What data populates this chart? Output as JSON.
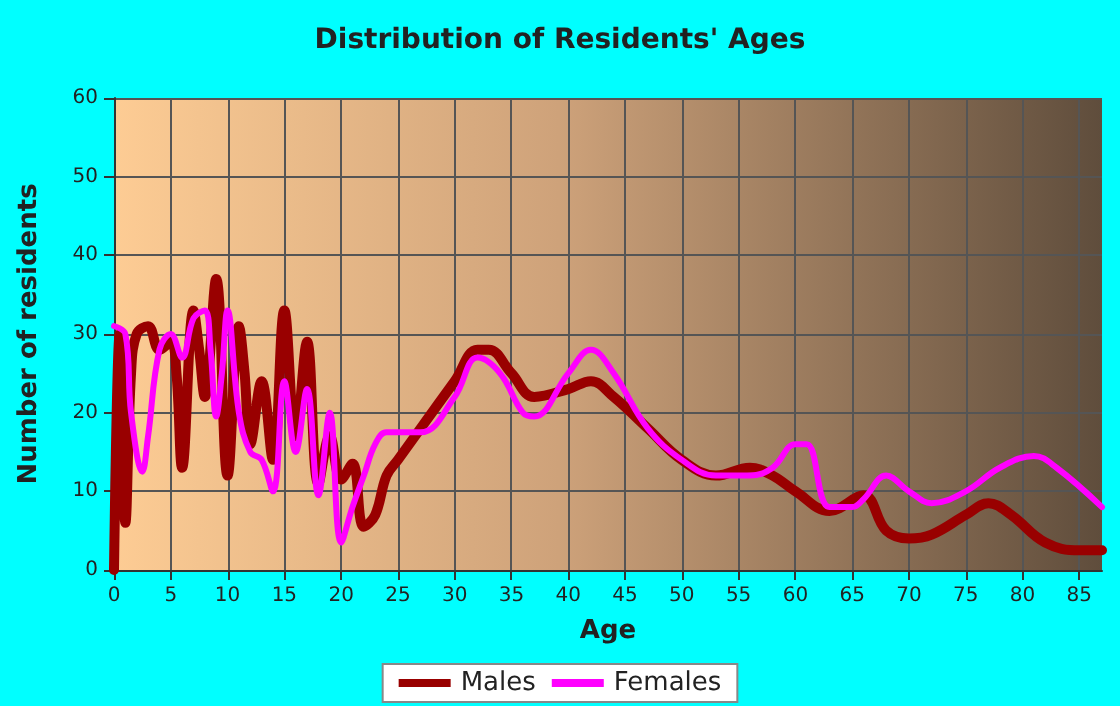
{
  "chart_data": {
    "type": "line",
    "title": "Distribution of Residents' Ages",
    "xlabel": "Age",
    "ylabel": "Number of residents",
    "xlim": [
      0,
      87
    ],
    "xticks": [
      0,
      5,
      10,
      15,
      20,
      25,
      30,
      35,
      40,
      45,
      50,
      55,
      60,
      65,
      70,
      75,
      80,
      85
    ],
    "ylim": [
      0,
      60
    ],
    "yticks": [
      0,
      10,
      20,
      30,
      40,
      50,
      60
    ],
    "grid": true,
    "legend": "bottom",
    "marker": "none",
    "line_style": "solid",
    "series": [
      {
        "name": "Males",
        "color": "#990000",
        "x": [
          0,
          0.5,
          1,
          1.5,
          2,
          3,
          4,
          5,
          5.5,
          6,
          7,
          7.5,
          8,
          9,
          10,
          11,
          11.5,
          12,
          13,
          14,
          15,
          16,
          17,
          18,
          19,
          20,
          21,
          22,
          23,
          24,
          25,
          27,
          30,
          32,
          33,
          35,
          37,
          40,
          42,
          44,
          47,
          50,
          53,
          56,
          58,
          60,
          63,
          66,
          68,
          70,
          72,
          75,
          77,
          79,
          82,
          85,
          87
        ],
        "values": [
          0,
          30,
          6,
          25,
          30,
          31,
          28,
          29,
          25,
          13,
          33,
          28,
          22,
          37,
          12,
          31,
          25,
          16,
          24,
          14,
          33,
          17,
          29,
          11,
          17,
          11.5,
          13.5,
          5.5,
          7,
          12,
          14,
          18,
          24,
          28,
          28,
          25,
          22,
          23,
          24,
          22,
          18,
          14,
          12,
          13,
          12,
          10,
          7.5,
          9.5,
          5,
          4,
          4.5,
          7,
          8.5,
          7,
          3.5,
          2.5,
          2.5
        ]
      },
      {
        "name": "Females",
        "color": "#ff00ff",
        "x": [
          0,
          1,
          1.5,
          2.5,
          3,
          4,
          5,
          6,
          7,
          8,
          8.5,
          9,
          9.5,
          10,
          11,
          12,
          13,
          14,
          15,
          16,
          17,
          18,
          19,
          20,
          21,
          22,
          23,
          24,
          27,
          30,
          32,
          34,
          36,
          37,
          40,
          42,
          44,
          47,
          50,
          53,
          56,
          58,
          60,
          61,
          63,
          65,
          66,
          68,
          70,
          72,
          75,
          78,
          81,
          83,
          87
        ],
        "values": [
          31,
          30,
          20,
          12.5,
          17,
          28,
          30,
          27,
          32,
          33,
          28,
          19.5,
          25,
          33,
          20,
          15,
          14,
          10,
          24,
          15,
          23,
          9.5,
          20,
          3.5,
          8,
          12,
          16,
          17.5,
          17.5,
          22,
          27,
          25,
          20,
          19.5,
          25,
          28,
          25,
          18,
          14,
          12,
          12,
          13,
          16,
          16,
          8,
          8,
          9,
          12,
          10,
          8.5,
          10,
          13,
          14.5,
          13,
          8
        ]
      }
    ]
  }
}
